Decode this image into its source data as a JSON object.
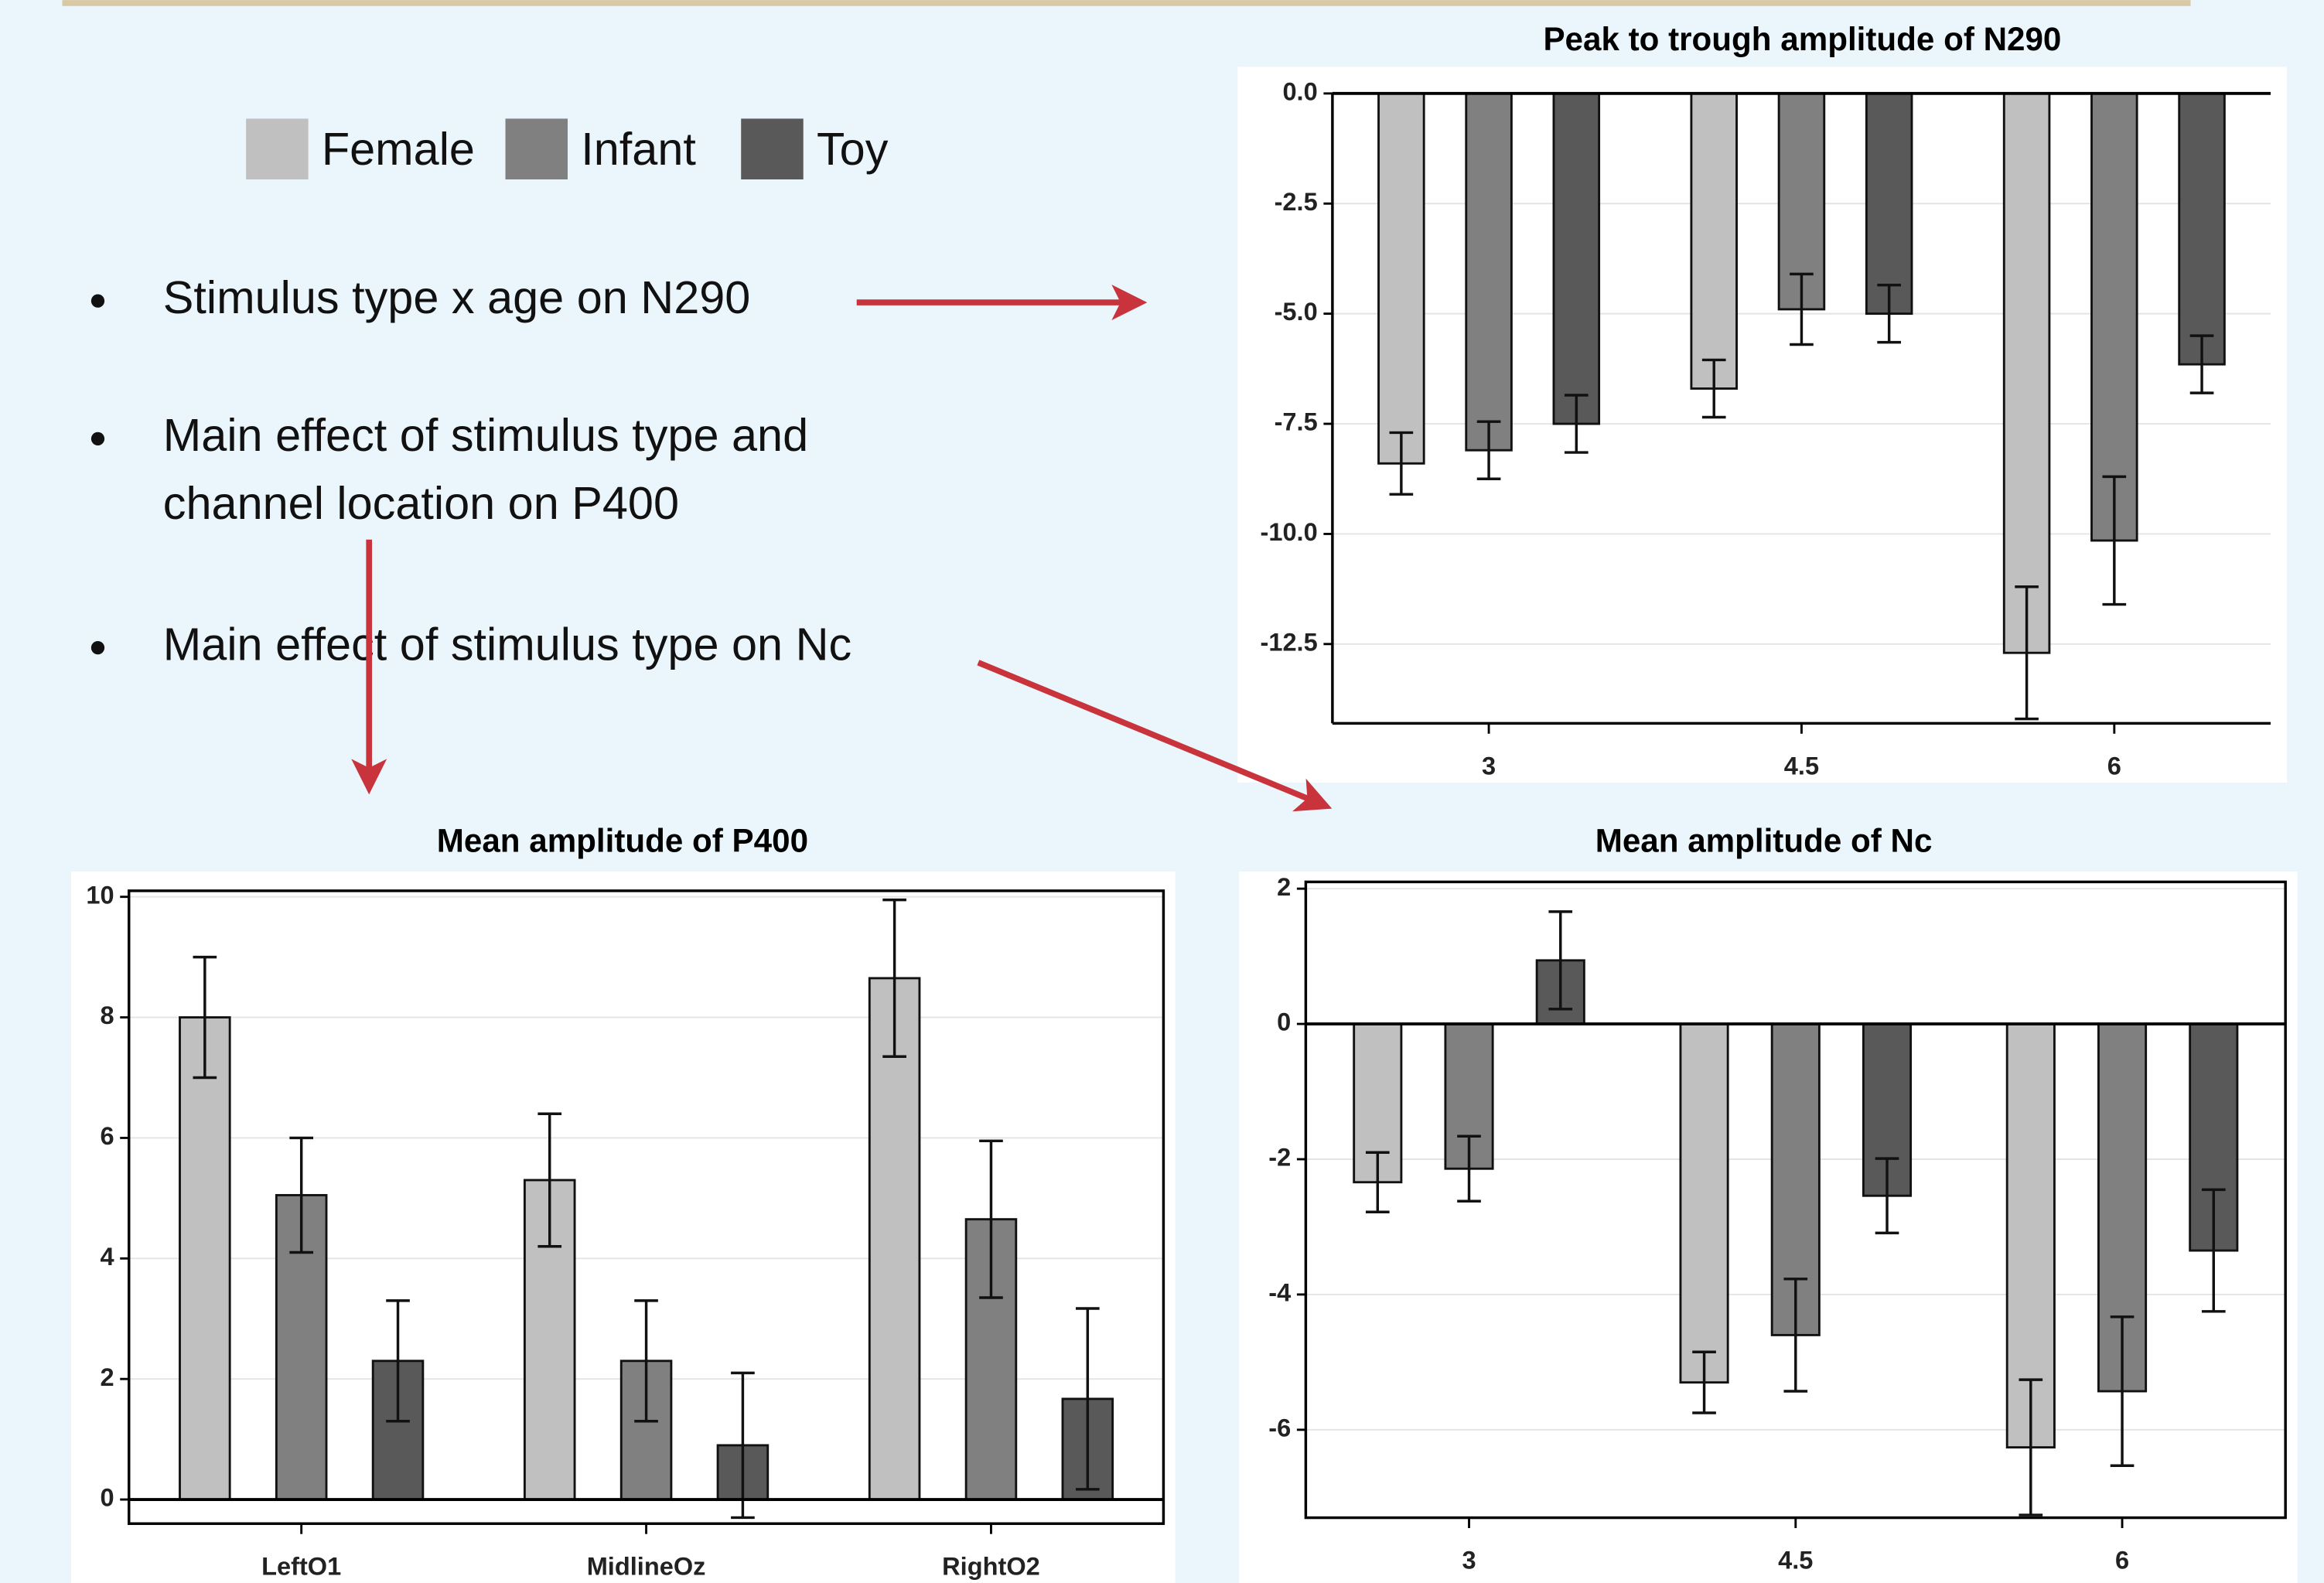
{
  "bullets": [
    [
      "Stimulus type x age on N290"
    ],
    [
      "Main effect of stimulus type and",
      "channel location on P400"
    ],
    [
      "Main effect of stimulus type on Nc"
    ]
  ],
  "chart_data": [
    {
      "type": "bar",
      "title": "Peak to trough amplitude of N290",
      "categories": [
        "3",
        "4.5",
        "6"
      ],
      "series": [
        {
          "name": "Female",
          "color": "#c0c0c0",
          "values": [
            -8.4,
            -6.7,
            -12.7
          ],
          "errors": [
            0.7,
            0.65,
            1.5
          ]
        },
        {
          "name": "Infant",
          "color": "#808080",
          "values": [
            -8.1,
            -4.9,
            -10.15
          ],
          "errors": [
            0.65,
            0.8,
            1.45
          ]
        },
        {
          "name": "Toy",
          "color": "#595959",
          "values": [
            -7.5,
            -5.0,
            -6.15
          ],
          "errors": [
            0.65,
            0.65,
            0.65
          ]
        }
      ],
      "ylim": [
        -14.3,
        0
      ],
      "yticks": [
        {
          "value": 0,
          "label": "0.0"
        },
        -2.5,
        {
          "value": -5,
          "label": "-5.0"
        },
        -7.5,
        {
          "value": -10,
          "label": "-10.0"
        },
        -12.5
      ],
      "grid": true
    },
    {
      "type": "bar",
      "title": "Mean amplitude of P400",
      "categories": [
        "LeftO1",
        "MidlineOz",
        "RightO2"
      ],
      "series": [
        {
          "name": "Female",
          "color": "#c0c0c0",
          "values": [
            8.0,
            5.3,
            8.65
          ],
          "errors": [
            1.0,
            1.1,
            1.3
          ]
        },
        {
          "name": "Infant",
          "color": "#808080",
          "values": [
            5.05,
            2.3,
            4.65
          ],
          "errors": [
            0.95,
            1.0,
            1.3
          ]
        },
        {
          "name": "Toy",
          "color": "#595959",
          "values": [
            2.3,
            0.9,
            1.67
          ],
          "errors": [
            1.0,
            1.2,
            1.5
          ]
        }
      ],
      "ylim": [
        -0.4,
        10.1
      ],
      "yticks": [
        0,
        2,
        4,
        6,
        8,
        10
      ],
      "grid": true
    },
    {
      "type": "bar",
      "title": "Mean amplitude of Nc",
      "categories": [
        "3",
        "4.5",
        "6"
      ],
      "series": [
        {
          "name": "Female",
          "color": "#c0c0c0",
          "values": [
            -2.34,
            -5.3,
            -6.26
          ],
          "errors": [
            0.44,
            0.45,
            1.0
          ]
        },
        {
          "name": "Infant",
          "color": "#808080",
          "values": [
            -2.14,
            -4.6,
            -5.43
          ],
          "errors": [
            0.48,
            0.83,
            1.1
          ]
        },
        {
          "name": "Toy",
          "color": "#595959",
          "values": [
            0.94,
            -2.54,
            -3.35
          ],
          "errors": [
            0.72,
            0.55,
            0.9
          ]
        }
      ],
      "ylim": [
        -7.3,
        2.1
      ],
      "yticks": [
        -6,
        -4,
        -2,
        0,
        2
      ],
      "grid": true
    }
  ]
}
